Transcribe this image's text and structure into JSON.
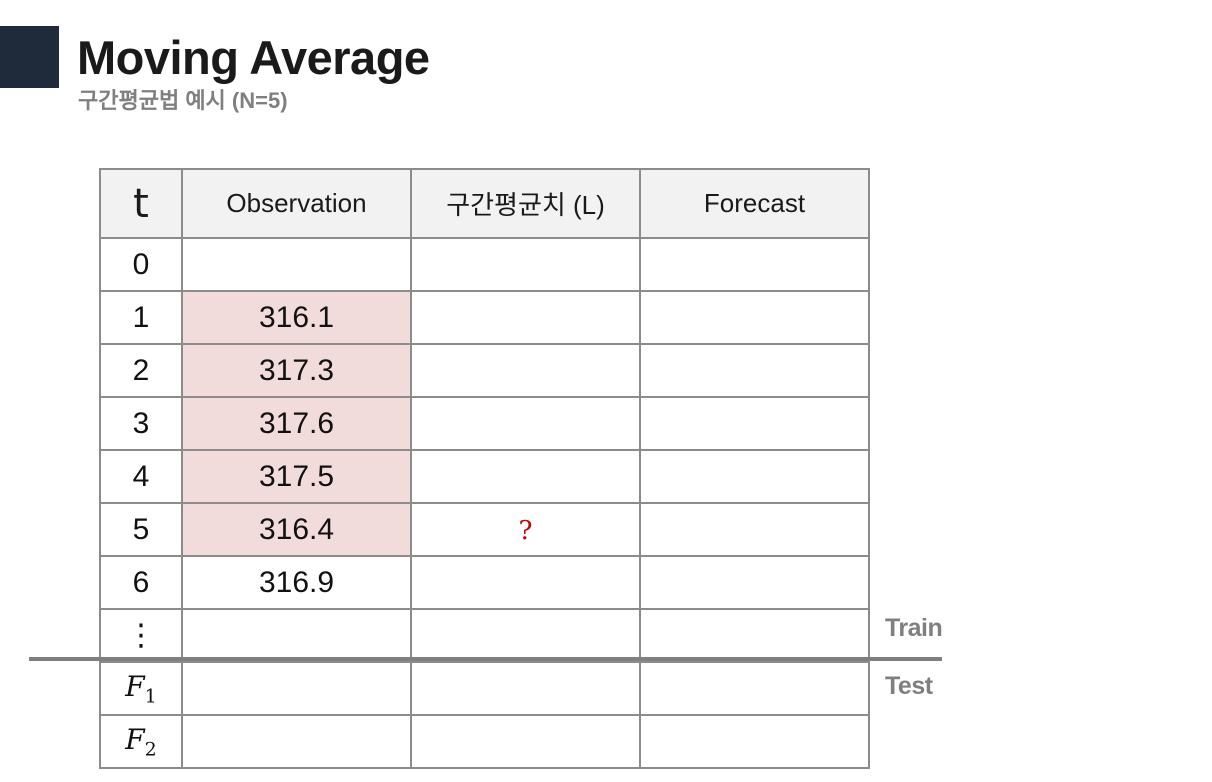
{
  "header": {
    "title": "Moving Average",
    "subtitle": "구간평균법 예시 (N=5)"
  },
  "table": {
    "columns": [
      "t",
      "Observation",
      "구간평균치 (L)",
      "Forecast"
    ],
    "rows": [
      {
        "t": "0",
        "observation": "",
        "level": "",
        "forecast": "",
        "highlight": false
      },
      {
        "t": "1",
        "observation": "316.1",
        "level": "",
        "forecast": "",
        "highlight": true
      },
      {
        "t": "2",
        "observation": "317.3",
        "level": "",
        "forecast": "",
        "highlight": true
      },
      {
        "t": "3",
        "observation": "317.6",
        "level": "",
        "forecast": "",
        "highlight": true
      },
      {
        "t": "4",
        "observation": "317.5",
        "level": "",
        "forecast": "",
        "highlight": true
      },
      {
        "t": "5",
        "observation": "316.4",
        "level": "?",
        "forecast": "",
        "highlight": true
      },
      {
        "t": "6",
        "observation": "316.9",
        "level": "",
        "forecast": "",
        "highlight": false
      },
      {
        "t": "⋮",
        "observation": "",
        "level": "",
        "forecast": "",
        "highlight": false
      }
    ],
    "forecast_rows": [
      {
        "label": "F",
        "sub": "1"
      },
      {
        "label": "F",
        "sub": "2"
      }
    ]
  },
  "labels": {
    "train": "Train",
    "test": "Test"
  },
  "colors": {
    "accent_block": "#1f2a3a",
    "highlight": "#f2dcdb",
    "question_mark": "#cc0000",
    "divider": "#7f7f7f"
  }
}
